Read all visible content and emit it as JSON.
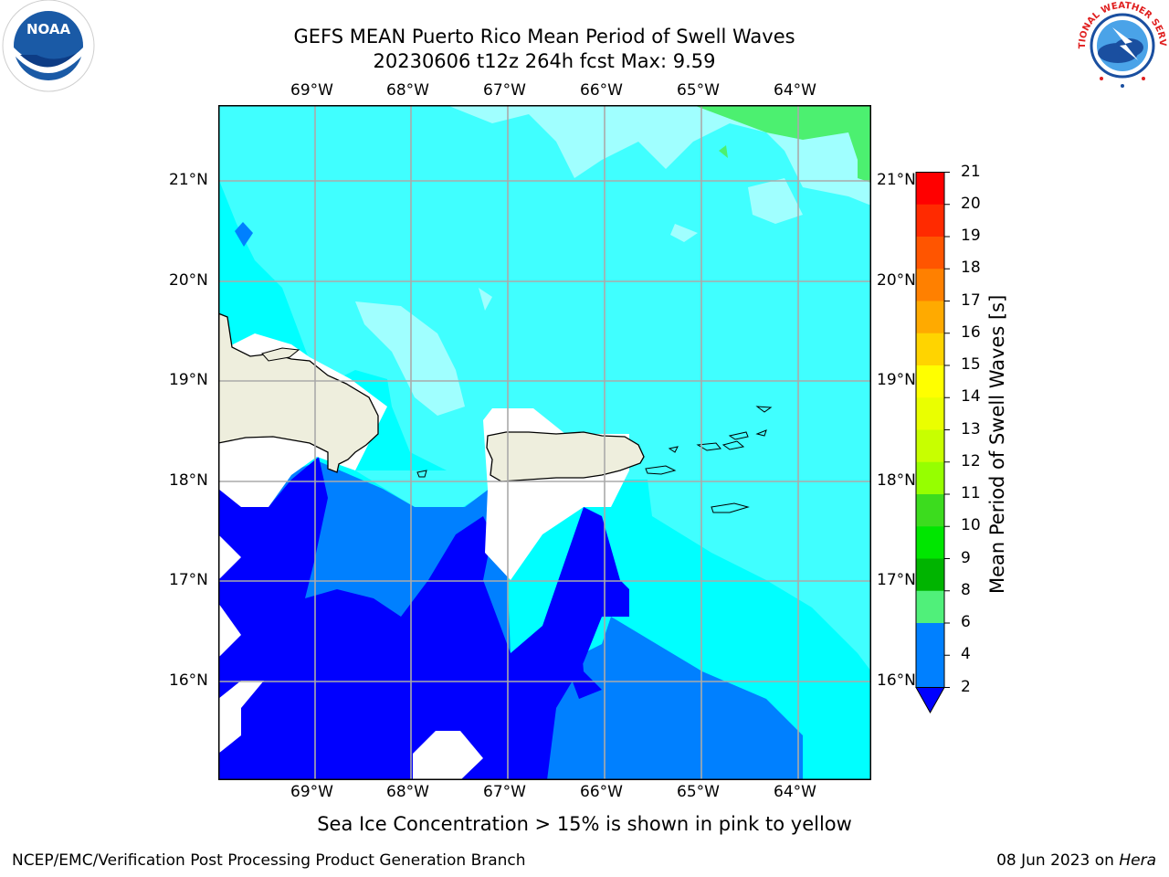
{
  "header": {
    "title_line1": "GEFS MEAN Puerto Rico Mean Period of Swell Waves",
    "title_line2": "20230606 t12z 264h fcst   Max: 9.59"
  },
  "logos": {
    "noaa_text": "NOAA",
    "nws_text": "NATIONAL WEATHER SERVICE"
  },
  "map": {
    "lon_labels": [
      "69°W",
      "68°W",
      "67°W",
      "66°W",
      "65°W",
      "64°W"
    ],
    "lat_labels": [
      "21°N",
      "20°N",
      "19°N",
      "18°N",
      "17°N",
      "16°N"
    ],
    "colors": {
      "land": "#eeeedd",
      "period_2_4": "#0000ff",
      "period_4_6": "#0080ff",
      "period_6_8": "#00ffff",
      "period_8_9": "#40ffff",
      "period_9_10": "#a0ffff",
      "period_above_9": "#4cf070",
      "grid": "#aaaaaa"
    }
  },
  "colorbar": {
    "label": "Mean Period of Swell Waves [s]",
    "ticks": [
      "21",
      "20",
      "19",
      "18",
      "17",
      "16",
      "15",
      "14",
      "13",
      "12",
      "11",
      "10",
      "9",
      "8",
      "6",
      "4",
      "2"
    ],
    "colors": [
      "#ff0000",
      "#ff2a00",
      "#ff5500",
      "#ff8000",
      "#ffaa00",
      "#ffd400",
      "#ffff00",
      "#eaff00",
      "#c8ff00",
      "#96ff00",
      "#3cdc1e",
      "#00e600",
      "#00b400",
      "#50f07a",
      "#a0ffff",
      "#40ffff",
      "#00ffff",
      "#0080ff",
      "#0000ff"
    ]
  },
  "subtitle": "Sea Ice Concentration > 15% is shown in pink to yellow",
  "footer": {
    "left": "NCEP/EMC/Verification Post Processing Product Generation Branch",
    "right_date": "08 Jun 2023 on",
    "right_host": "Hera"
  }
}
